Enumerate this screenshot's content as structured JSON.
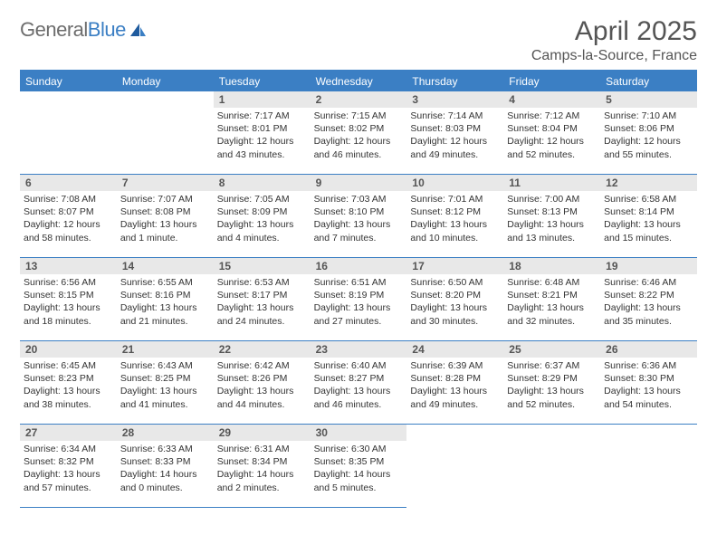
{
  "logo": {
    "word1": "General",
    "word2": "Blue"
  },
  "header": {
    "month": "April 2025",
    "location": "Camps-la-Source, France"
  },
  "colors": {
    "brand": "#3b7fc4",
    "daybar": "#e8e8e8",
    "text": "#333333",
    "muted": "#6d6d6d"
  },
  "weekdays": [
    "Sunday",
    "Monday",
    "Tuesday",
    "Wednesday",
    "Thursday",
    "Friday",
    "Saturday"
  ],
  "leading_blanks": 2,
  "days": [
    {
      "n": "1",
      "sunrise": "Sunrise: 7:17 AM",
      "sunset": "Sunset: 8:01 PM",
      "day": "Daylight: 12 hours and 43 minutes."
    },
    {
      "n": "2",
      "sunrise": "Sunrise: 7:15 AM",
      "sunset": "Sunset: 8:02 PM",
      "day": "Daylight: 12 hours and 46 minutes."
    },
    {
      "n": "3",
      "sunrise": "Sunrise: 7:14 AM",
      "sunset": "Sunset: 8:03 PM",
      "day": "Daylight: 12 hours and 49 minutes."
    },
    {
      "n": "4",
      "sunrise": "Sunrise: 7:12 AM",
      "sunset": "Sunset: 8:04 PM",
      "day": "Daylight: 12 hours and 52 minutes."
    },
    {
      "n": "5",
      "sunrise": "Sunrise: 7:10 AM",
      "sunset": "Sunset: 8:06 PM",
      "day": "Daylight: 12 hours and 55 minutes."
    },
    {
      "n": "6",
      "sunrise": "Sunrise: 7:08 AM",
      "sunset": "Sunset: 8:07 PM",
      "day": "Daylight: 12 hours and 58 minutes."
    },
    {
      "n": "7",
      "sunrise": "Sunrise: 7:07 AM",
      "sunset": "Sunset: 8:08 PM",
      "day": "Daylight: 13 hours and 1 minute."
    },
    {
      "n": "8",
      "sunrise": "Sunrise: 7:05 AM",
      "sunset": "Sunset: 8:09 PM",
      "day": "Daylight: 13 hours and 4 minutes."
    },
    {
      "n": "9",
      "sunrise": "Sunrise: 7:03 AM",
      "sunset": "Sunset: 8:10 PM",
      "day": "Daylight: 13 hours and 7 minutes."
    },
    {
      "n": "10",
      "sunrise": "Sunrise: 7:01 AM",
      "sunset": "Sunset: 8:12 PM",
      "day": "Daylight: 13 hours and 10 minutes."
    },
    {
      "n": "11",
      "sunrise": "Sunrise: 7:00 AM",
      "sunset": "Sunset: 8:13 PM",
      "day": "Daylight: 13 hours and 13 minutes."
    },
    {
      "n": "12",
      "sunrise": "Sunrise: 6:58 AM",
      "sunset": "Sunset: 8:14 PM",
      "day": "Daylight: 13 hours and 15 minutes."
    },
    {
      "n": "13",
      "sunrise": "Sunrise: 6:56 AM",
      "sunset": "Sunset: 8:15 PM",
      "day": "Daylight: 13 hours and 18 minutes."
    },
    {
      "n": "14",
      "sunrise": "Sunrise: 6:55 AM",
      "sunset": "Sunset: 8:16 PM",
      "day": "Daylight: 13 hours and 21 minutes."
    },
    {
      "n": "15",
      "sunrise": "Sunrise: 6:53 AM",
      "sunset": "Sunset: 8:17 PM",
      "day": "Daylight: 13 hours and 24 minutes."
    },
    {
      "n": "16",
      "sunrise": "Sunrise: 6:51 AM",
      "sunset": "Sunset: 8:19 PM",
      "day": "Daylight: 13 hours and 27 minutes."
    },
    {
      "n": "17",
      "sunrise": "Sunrise: 6:50 AM",
      "sunset": "Sunset: 8:20 PM",
      "day": "Daylight: 13 hours and 30 minutes."
    },
    {
      "n": "18",
      "sunrise": "Sunrise: 6:48 AM",
      "sunset": "Sunset: 8:21 PM",
      "day": "Daylight: 13 hours and 32 minutes."
    },
    {
      "n": "19",
      "sunrise": "Sunrise: 6:46 AM",
      "sunset": "Sunset: 8:22 PM",
      "day": "Daylight: 13 hours and 35 minutes."
    },
    {
      "n": "20",
      "sunrise": "Sunrise: 6:45 AM",
      "sunset": "Sunset: 8:23 PM",
      "day": "Daylight: 13 hours and 38 minutes."
    },
    {
      "n": "21",
      "sunrise": "Sunrise: 6:43 AM",
      "sunset": "Sunset: 8:25 PM",
      "day": "Daylight: 13 hours and 41 minutes."
    },
    {
      "n": "22",
      "sunrise": "Sunrise: 6:42 AM",
      "sunset": "Sunset: 8:26 PM",
      "day": "Daylight: 13 hours and 44 minutes."
    },
    {
      "n": "23",
      "sunrise": "Sunrise: 6:40 AM",
      "sunset": "Sunset: 8:27 PM",
      "day": "Daylight: 13 hours and 46 minutes."
    },
    {
      "n": "24",
      "sunrise": "Sunrise: 6:39 AM",
      "sunset": "Sunset: 8:28 PM",
      "day": "Daylight: 13 hours and 49 minutes."
    },
    {
      "n": "25",
      "sunrise": "Sunrise: 6:37 AM",
      "sunset": "Sunset: 8:29 PM",
      "day": "Daylight: 13 hours and 52 minutes."
    },
    {
      "n": "26",
      "sunrise": "Sunrise: 6:36 AM",
      "sunset": "Sunset: 8:30 PM",
      "day": "Daylight: 13 hours and 54 minutes."
    },
    {
      "n": "27",
      "sunrise": "Sunrise: 6:34 AM",
      "sunset": "Sunset: 8:32 PM",
      "day": "Daylight: 13 hours and 57 minutes."
    },
    {
      "n": "28",
      "sunrise": "Sunrise: 6:33 AM",
      "sunset": "Sunset: 8:33 PM",
      "day": "Daylight: 14 hours and 0 minutes."
    },
    {
      "n": "29",
      "sunrise": "Sunrise: 6:31 AM",
      "sunset": "Sunset: 8:34 PM",
      "day": "Daylight: 14 hours and 2 minutes."
    },
    {
      "n": "30",
      "sunrise": "Sunrise: 6:30 AM",
      "sunset": "Sunset: 8:35 PM",
      "day": "Daylight: 14 hours and 5 minutes."
    }
  ]
}
